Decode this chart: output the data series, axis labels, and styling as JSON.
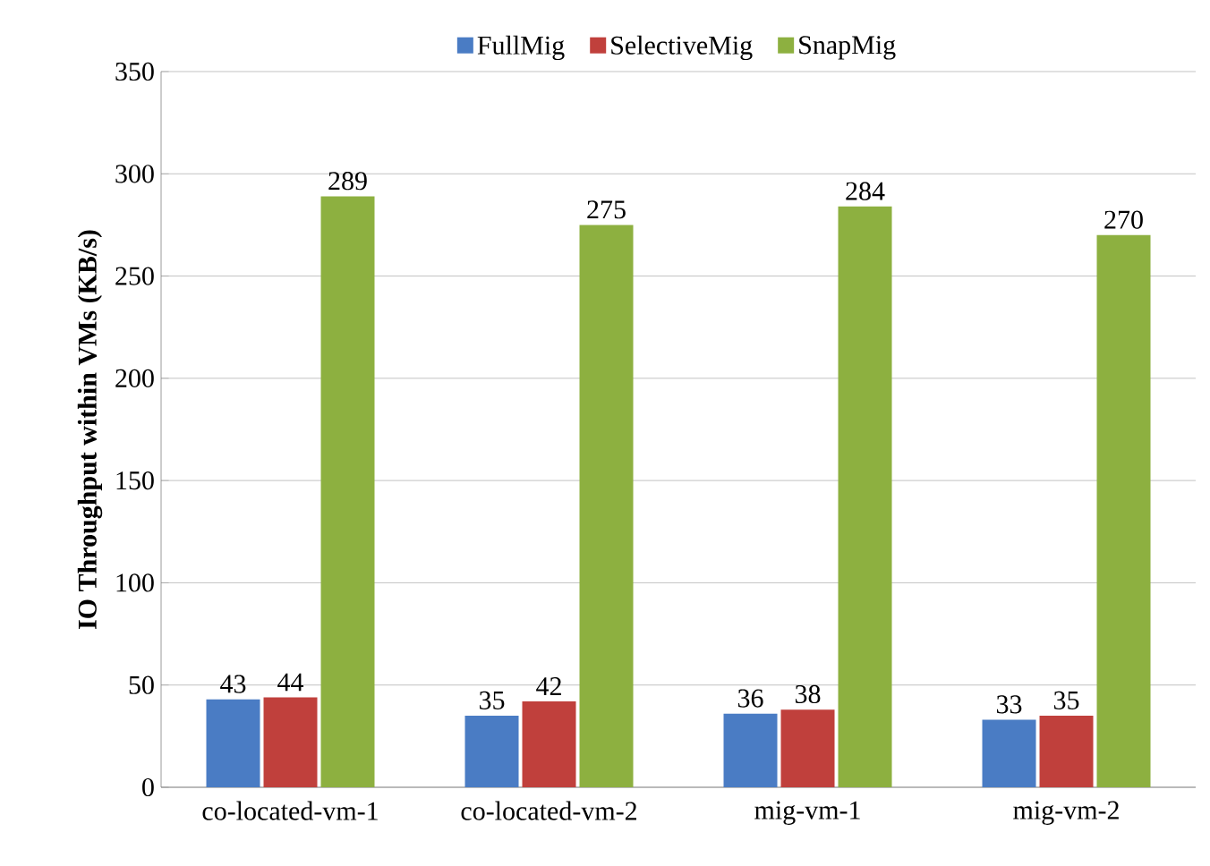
{
  "chart_data": {
    "type": "bar",
    "ylabel": "IO Throughput within VMs (KB/s)",
    "categories": [
      "co-located-vm-1",
      "co-located-vm-2",
      "mig-vm-1",
      "mig-vm-2"
    ],
    "series": [
      {
        "name": "FullMig",
        "color": "#4a7cc4",
        "values": [
          43,
          35,
          36,
          33
        ]
      },
      {
        "name": "SelectiveMig",
        "color": "#c0403c",
        "values": [
          44,
          42,
          38,
          35
        ]
      },
      {
        "name": "SnapMig",
        "color": "#8db040",
        "values": [
          289,
          275,
          284,
          270
        ]
      }
    ],
    "ylim": [
      0,
      350
    ],
    "yticks": [
      0,
      50,
      100,
      150,
      200,
      250,
      300,
      350
    ],
    "grid": "y",
    "legend": "top",
    "data_labels": true
  }
}
